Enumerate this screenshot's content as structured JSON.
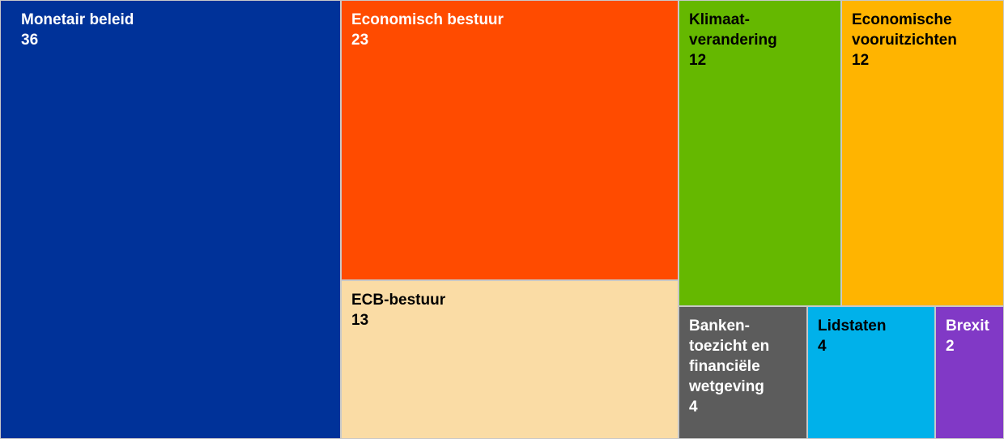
{
  "chart_data": {
    "type": "treemap",
    "items": [
      {
        "label": "Monetair beleid",
        "value": 36,
        "color": "#003299",
        "text_color": "#ffffff"
      },
      {
        "label": "Economisch bestuur",
        "value": 23,
        "color": "#ff4b00",
        "text_color": "#ffffff"
      },
      {
        "label": "ECB-bestuur",
        "value": 13,
        "color": "#fadca5",
        "text_color": "#000000"
      },
      {
        "label": "Klimaat-\nverandering",
        "value": 12,
        "color": "#65b800",
        "text_color": "#000000"
      },
      {
        "label": "Economische\nvooruitzichten",
        "value": 12,
        "color": "#ffb400",
        "text_color": "#000000"
      },
      {
        "label": "Banken-\ntoezicht en\nfinanciële\nwetgeving",
        "value": 4,
        "color": "#5c5c5c",
        "text_color": "#ffffff"
      },
      {
        "label": "Lidstaten",
        "value": 4,
        "color": "#00b1ea",
        "text_color": "#000000"
      },
      {
        "label": "Brexit",
        "value": 2,
        "color": "#8139c6",
        "text_color": "#ffffff"
      }
    ]
  }
}
